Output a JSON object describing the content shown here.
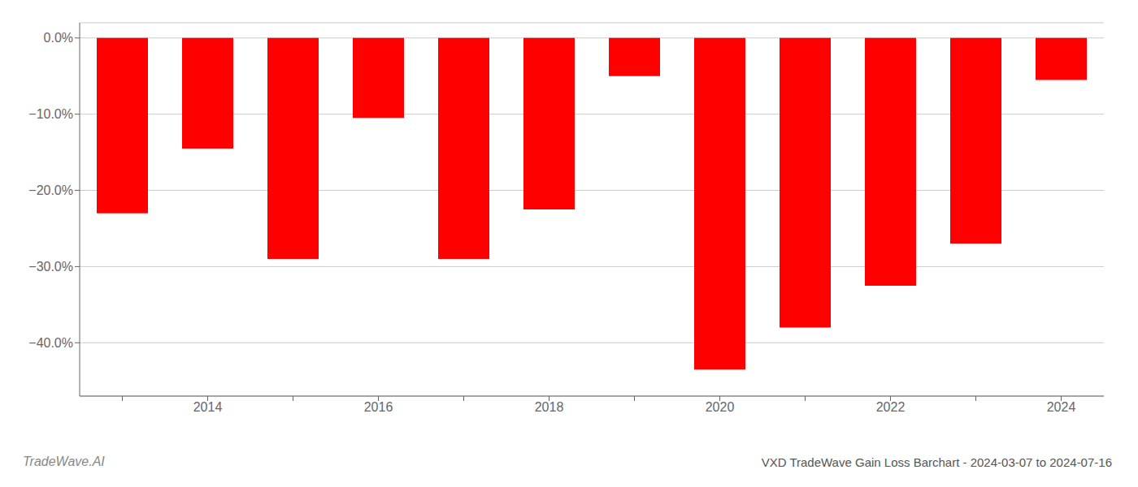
{
  "chart_data": {
    "type": "bar",
    "title": "VXD TradeWave Gain Loss Barchart - 2024-03-07 to 2024-07-16",
    "annotations": [
      "TradeWave.AI"
    ],
    "categories": [
      null,
      "2014",
      null,
      "2016",
      null,
      "2018",
      null,
      "2020",
      null,
      "2022",
      null,
      "2024"
    ],
    "values": [
      -23.0,
      -14.5,
      -29.0,
      -10.5,
      -29.0,
      -22.5,
      -5.0,
      -43.5,
      -38.0,
      -32.5,
      -27.0,
      -5.5
    ],
    "color": "#ff0000",
    "ylim": [
      -47,
      2
    ],
    "yticks": [
      {
        "value": 0,
        "label": "0.0%"
      },
      {
        "value": -10,
        "label": "−10.0%"
      },
      {
        "value": -20,
        "label": "−20.0%"
      },
      {
        "value": -30,
        "label": "−30.0%"
      },
      {
        "value": -40,
        "label": "−40.0%"
      }
    ],
    "grid": true
  }
}
